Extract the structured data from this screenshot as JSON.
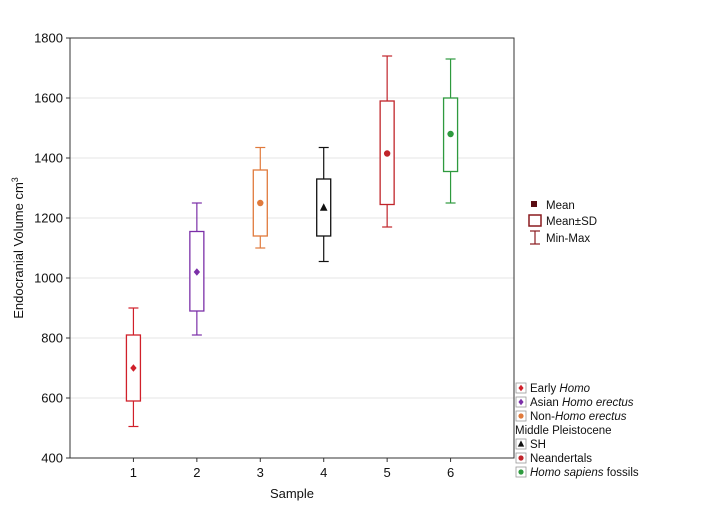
{
  "chart_data": {
    "type": "boxplot",
    "xlabel": "Sample",
    "ylabel": "Endocranial Volume cm",
    "ylabel_sup": "3",
    "ylim": [
      400,
      1800
    ],
    "yticks": [
      "400",
      "600",
      "800",
      "1000",
      "1200",
      "1400",
      "1600",
      "1800"
    ],
    "xlim": [
      0,
      7
    ],
    "categories": [
      "1",
      "2",
      "3",
      "4",
      "5",
      "6"
    ],
    "grid": true,
    "stats_legend": [
      "Mean",
      "Mean±SD",
      "Min-Max"
    ],
    "series": [
      {
        "x": 1,
        "mean": 700,
        "sd_low": 590,
        "sd_high": 810,
        "min": 505,
        "max": 900,
        "color": "#d0202a",
        "marker": "diamond"
      },
      {
        "x": 2,
        "mean": 1020,
        "sd_low": 890,
        "sd_high": 1155,
        "min": 810,
        "max": 1250,
        "color": "#7b2fa8",
        "marker": "diamond"
      },
      {
        "x": 3,
        "mean": 1250,
        "sd_low": 1140,
        "sd_high": 1360,
        "min": 1100,
        "max": 1435,
        "color": "#e07a3c",
        "marker": "circle"
      },
      {
        "x": 4,
        "mean": 1235,
        "sd_low": 1140,
        "sd_high": 1330,
        "min": 1055,
        "max": 1435,
        "color": "#111111",
        "marker": "triangle"
      },
      {
        "x": 5,
        "mean": 1415,
        "sd_low": 1245,
        "sd_high": 1590,
        "min": 1170,
        "max": 1740,
        "color": "#c0242a",
        "marker": "circle"
      },
      {
        "x": 6,
        "mean": 1480,
        "sd_low": 1355,
        "sd_high": 1600,
        "min": 1250,
        "max": 1730,
        "color": "#2e9a3e",
        "marker": "circle"
      }
    ]
  },
  "legend": {
    "mean": "Mean",
    "mean_sd": "Mean±SD",
    "min_max": "Min-Max"
  },
  "group_legend": [
    {
      "pre": "Early ",
      "it": "Homo",
      "post": "",
      "color": "#d0202a",
      "shape": "diamond"
    },
    {
      "pre": "Asian ",
      "it": "Homo erectus",
      "post": "",
      "color": "#7b2fa8",
      "shape": "diamond"
    },
    {
      "pre": "Non-",
      "it": "Homo erectus",
      "post": "",
      "color": "#e07a3c",
      "shape": "circle"
    },
    {
      "pre": "Middle Pleistocene",
      "it": "",
      "post": "",
      "color": "",
      "shape": "none"
    },
    {
      "pre": "SH",
      "it": "",
      "post": "",
      "color": "#111111",
      "shape": "triangle"
    },
    {
      "pre": "Neandertals",
      "it": "",
      "post": "",
      "color": "#c0242a",
      "shape": "circle"
    },
    {
      "pre": "",
      "it": "Homo sapiens",
      "post": " fossils",
      "color": "#2e9a3e",
      "shape": "circle"
    }
  ]
}
